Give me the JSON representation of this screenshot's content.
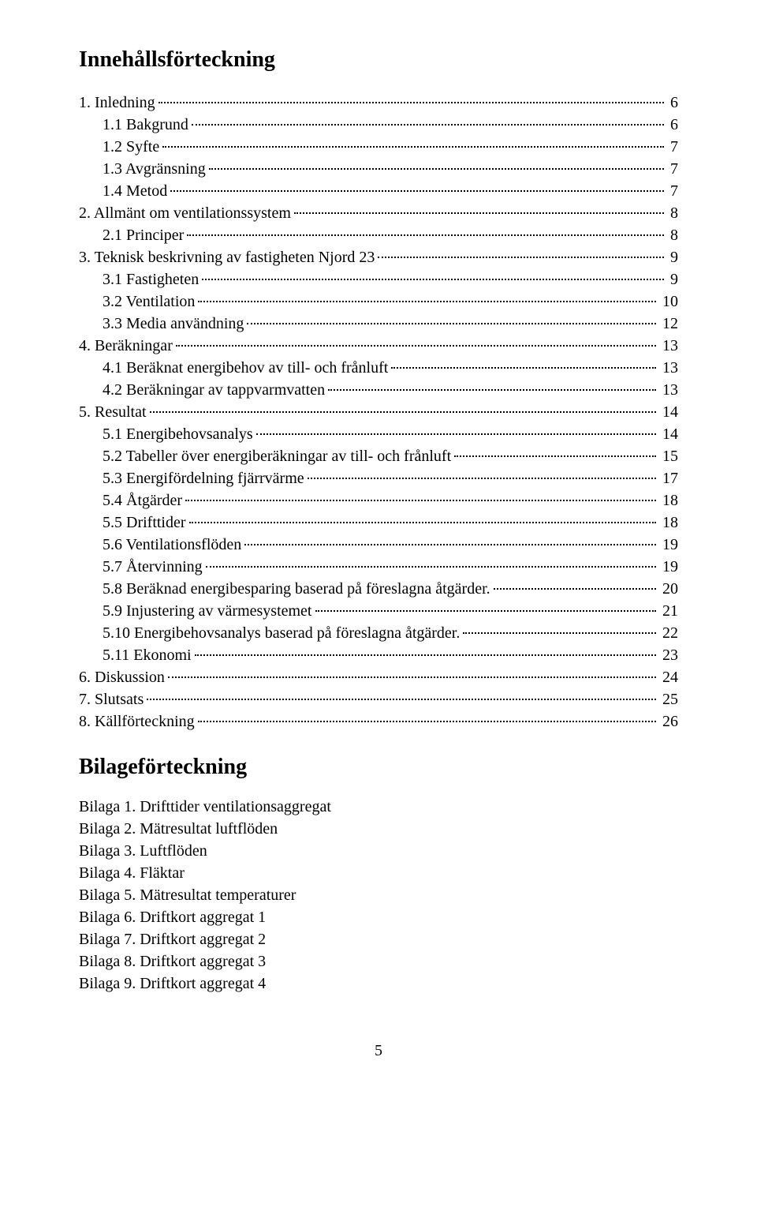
{
  "title": "Innehållsförteckning",
  "toc": [
    {
      "indent": 0,
      "label": "1. Inledning",
      "page": "6"
    },
    {
      "indent": 1,
      "label": "1.1 Bakgrund",
      "page": "6"
    },
    {
      "indent": 1,
      "label": "1.2 Syfte",
      "page": "7"
    },
    {
      "indent": 1,
      "label": "1.3 Avgränsning",
      "page": "7"
    },
    {
      "indent": 1,
      "label": "1.4 Metod",
      "page": "7"
    },
    {
      "indent": 0,
      "label": "2. Allmänt om ventilationssystem",
      "page": "8"
    },
    {
      "indent": 1,
      "label": "2.1 Principer",
      "page": "8"
    },
    {
      "indent": 0,
      "label": "3. Teknisk beskrivning av fastigheten Njord 23",
      "page": "9"
    },
    {
      "indent": 1,
      "label": "3.1 Fastigheten",
      "page": "9"
    },
    {
      "indent": 1,
      "label": "3.2 Ventilation",
      "page": "10"
    },
    {
      "indent": 1,
      "label": "3.3 Media användning",
      "page": "12"
    },
    {
      "indent": 0,
      "label": "4. Beräkningar",
      "page": "13"
    },
    {
      "indent": 1,
      "label": "4.1 Beräknat energibehov av till- och frånluft",
      "page": "13"
    },
    {
      "indent": 1,
      "label": "4.2 Beräkningar av tappvarmvatten",
      "page": "13"
    },
    {
      "indent": 0,
      "label": "5. Resultat",
      "page": "14"
    },
    {
      "indent": 1,
      "label": "5.1 Energibehovsanalys",
      "page": "14"
    },
    {
      "indent": 1,
      "label": "5.2 Tabeller över energiberäkningar av till- och frånluft",
      "page": "15"
    },
    {
      "indent": 1,
      "label": "5.3 Energifördelning fjärrvärme",
      "page": "17"
    },
    {
      "indent": 1,
      "label": "5.4 Åtgärder",
      "page": "18"
    },
    {
      "indent": 1,
      "label": "5.5 Drifttider",
      "page": "18"
    },
    {
      "indent": 1,
      "label": "5.6 Ventilationsflöden",
      "page": "19"
    },
    {
      "indent": 1,
      "label": "5.7 Återvinning",
      "page": "19"
    },
    {
      "indent": 1,
      "label": "5.8 Beräknad energibesparing baserad på föreslagna åtgärder.",
      "page": "20"
    },
    {
      "indent": 1,
      "label": "5.9 Injustering av värmesystemet",
      "page": "21"
    },
    {
      "indent": 1,
      "label": "5.10 Energibehovsanalys baserad på föreslagna åtgärder.",
      "page": "22"
    },
    {
      "indent": 1,
      "label": "5.11 Ekonomi",
      "page": "23"
    },
    {
      "indent": 0,
      "label": "6. Diskussion",
      "page": "24"
    },
    {
      "indent": 0,
      "label": "7. Slutsats",
      "page": "25"
    },
    {
      "indent": 0,
      "label": "8. Källförteckning",
      "page": "26"
    }
  ],
  "bilaga_title": "Bilageförteckning",
  "bilagor": [
    "Bilaga 1. Drifttider ventilationsaggregat",
    "Bilaga 2. Mätresultat luftflöden",
    "Bilaga 3. Luftflöden",
    "Bilaga 4. Fläktar",
    "Bilaga 5. Mätresultat temperaturer",
    "Bilaga 6. Driftkort aggregat 1",
    "Bilaga 7. Driftkort aggregat 2",
    "Bilaga 8. Driftkort aggregat 3",
    "Bilaga 9. Driftkort aggregat 4"
  ],
  "page_number": "5"
}
